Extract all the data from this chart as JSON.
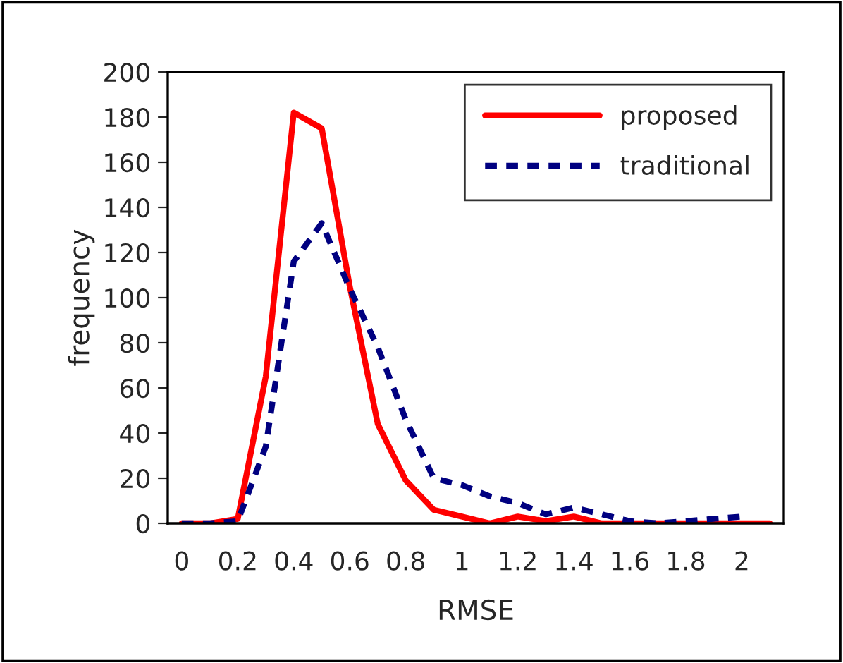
{
  "chart_data": {
    "type": "line",
    "xlabel": "RMSE",
    "ylabel": "frequency",
    "categories": [
      "0",
      null,
      "0.2",
      null,
      "0.4",
      null,
      "0.6",
      null,
      "0.8",
      null,
      "1",
      null,
      "1.2",
      null,
      "1.4",
      null,
      "1.6",
      null,
      "1.8",
      null,
      "2",
      null
    ],
    "series": [
      {
        "name": "proposed",
        "color": "#ff0000",
        "line_style": "solid",
        "values": [
          0,
          0,
          2,
          65,
          182,
          175,
          105,
          44,
          19,
          6,
          3,
          0,
          3,
          1,
          3,
          0,
          0,
          0,
          0,
          0,
          0,
          0
        ]
      },
      {
        "name": "traditional",
        "color": "#000080",
        "line_style": "dashed",
        "values": [
          0,
          0,
          1,
          34,
          116,
          133,
          104,
          78,
          46,
          20,
          17,
          12,
          9,
          4,
          7,
          4,
          1,
          0,
          1,
          2,
          3,
          null
        ]
      }
    ],
    "ylim": [
      0,
      200
    ],
    "yticks": [
      0,
      20,
      40,
      60,
      80,
      100,
      120,
      140,
      160,
      180,
      200
    ],
    "grid": false,
    "legend": "top right",
    "marker": "none"
  }
}
